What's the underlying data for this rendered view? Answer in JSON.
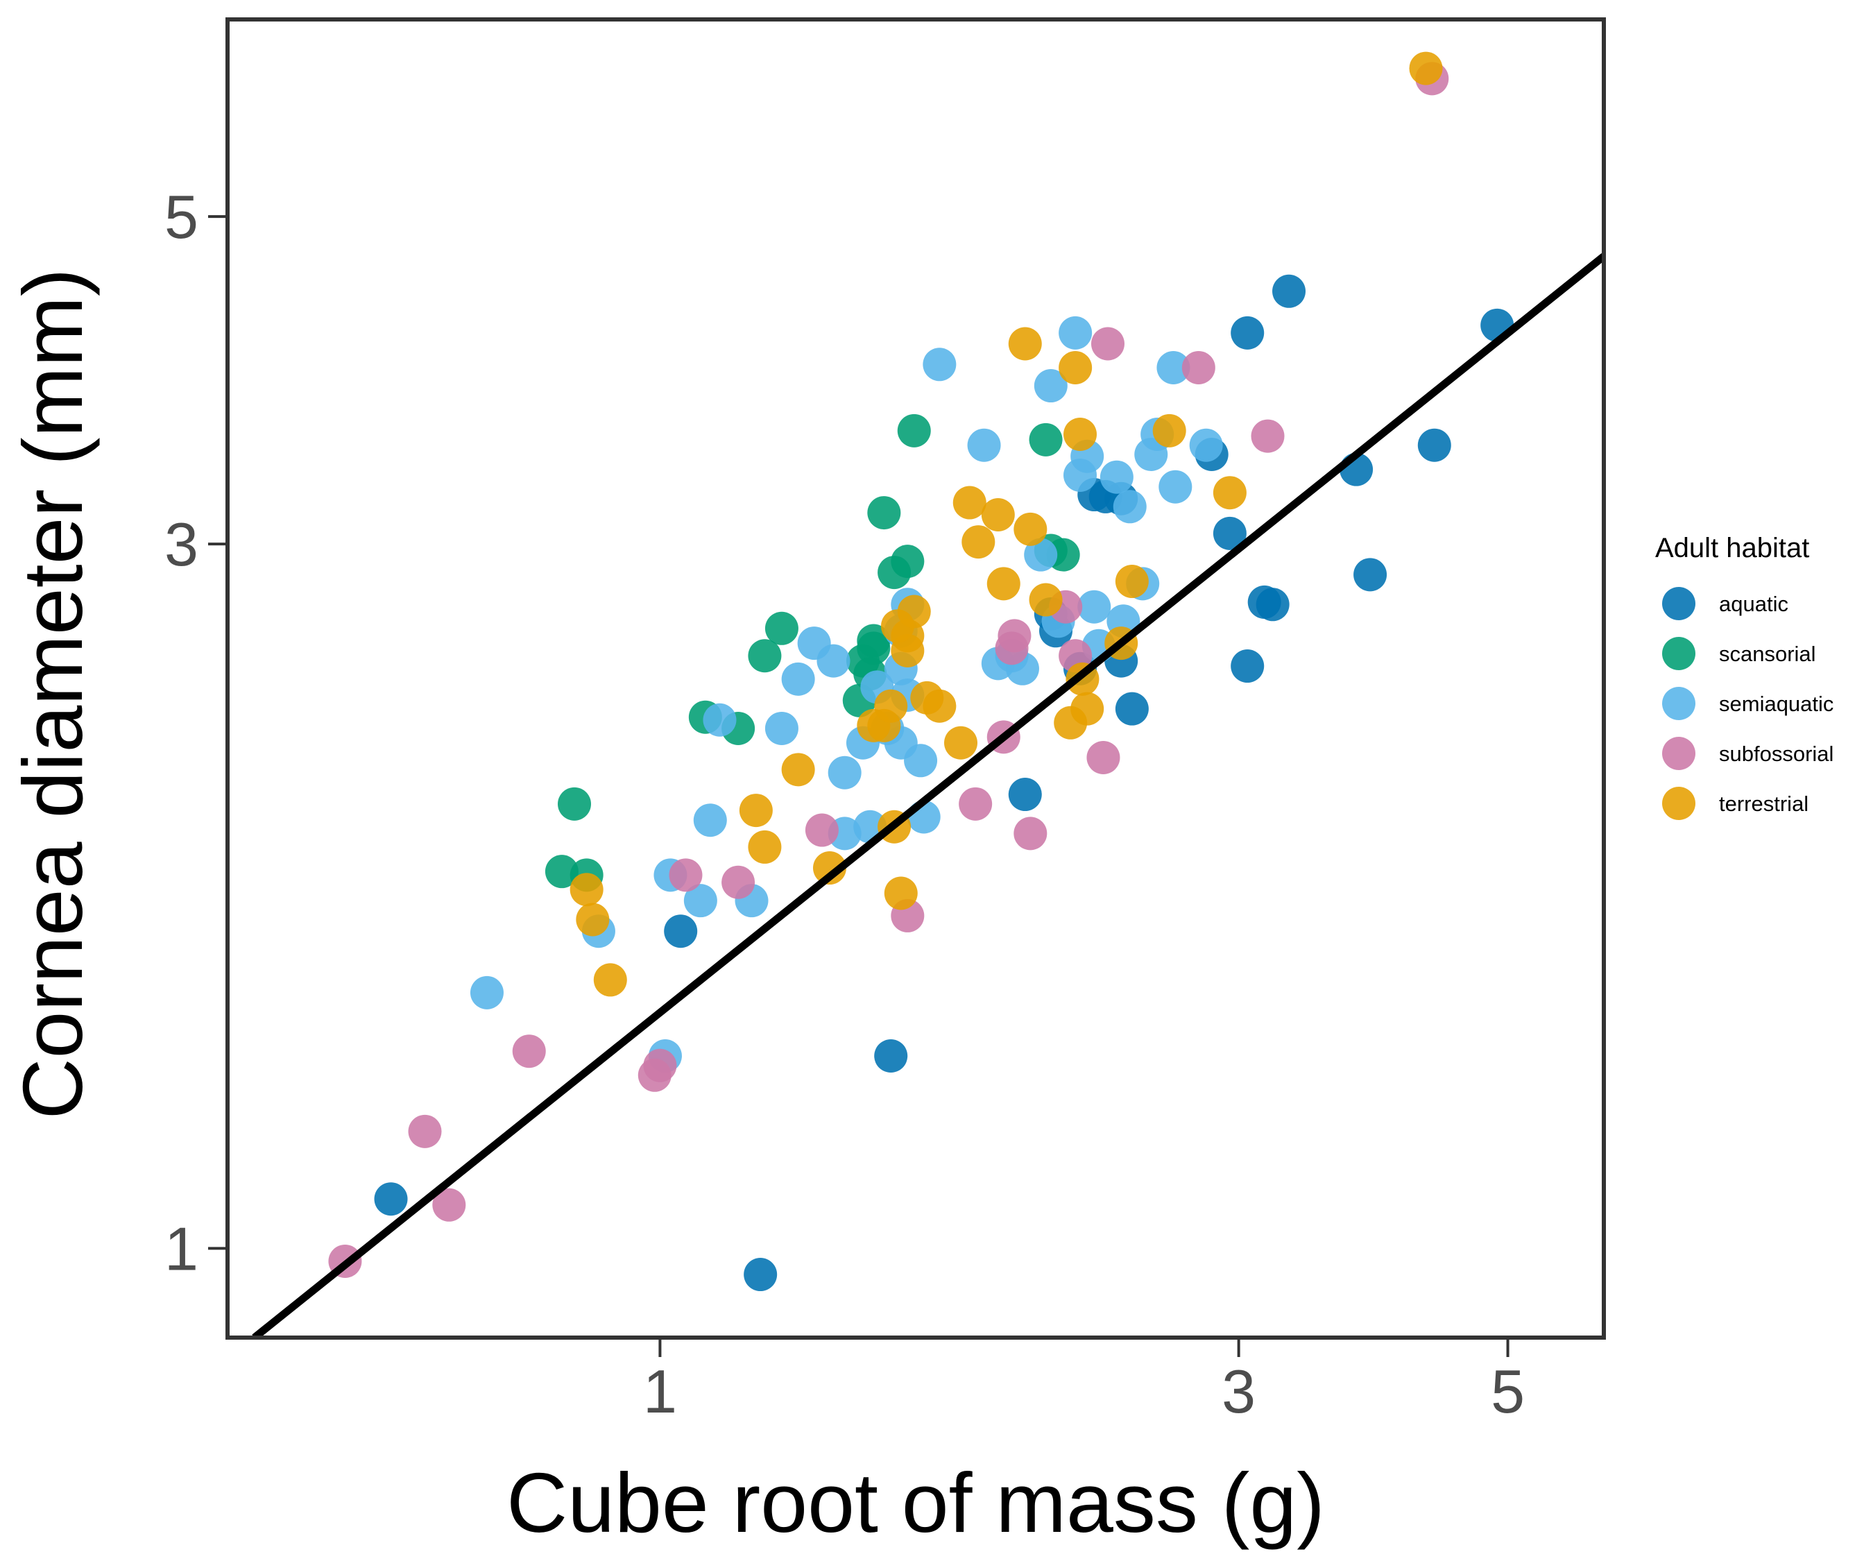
{
  "chart_data": {
    "type": "scatter",
    "xlabel": "Cube root of mass (g)",
    "ylabel": "Cornea diameter (mm)",
    "x_scale": "log",
    "y_scale": "log",
    "xlim": [
      0.44,
      6.0
    ],
    "ylim": [
      0.87,
      6.8
    ],
    "x_ticks": [
      1,
      3,
      5
    ],
    "y_ticks": [
      1,
      3,
      5
    ],
    "grid": false,
    "legend": {
      "title": "Adult habitat",
      "position": "right"
    },
    "trend_line": {
      "points": [
        [
          0.463,
          0.87
        ],
        [
          6.0,
          4.7
        ]
      ],
      "color": "#000000"
    },
    "series": [
      {
        "name": "aquatic",
        "color": "#0072B2",
        "points": [
          [
            0.6,
            1.08
          ],
          [
            1.04,
            1.64
          ],
          [
            1.21,
            0.96
          ],
          [
            1.55,
            1.35
          ],
          [
            2.0,
            2.03
          ],
          [
            2.1,
            2.69
          ],
          [
            2.12,
            2.62
          ],
          [
            2.22,
            2.47
          ],
          [
            2.28,
            3.24
          ],
          [
            2.33,
            3.23
          ],
          [
            2.4,
            3.22
          ],
          [
            2.4,
            2.5
          ],
          [
            2.45,
            2.32
          ],
          [
            2.85,
            3.45
          ],
          [
            2.95,
            3.05
          ],
          [
            3.05,
            4.17
          ],
          [
            3.05,
            2.48
          ],
          [
            3.15,
            2.74
          ],
          [
            3.2,
            2.73
          ],
          [
            3.3,
            4.45
          ],
          [
            3.75,
            3.37
          ],
          [
            3.85,
            2.86
          ],
          [
            4.35,
            3.5
          ],
          [
            4.9,
            4.22
          ]
        ]
      },
      {
        "name": "scansorial",
        "color": "#009E73",
        "points": [
          [
            0.85,
            2.0
          ],
          [
            0.83,
            1.8
          ],
          [
            0.87,
            1.79
          ],
          [
            1.09,
            2.29
          ],
          [
            1.16,
            2.25
          ],
          [
            1.22,
            2.52
          ],
          [
            1.26,
            2.63
          ],
          [
            1.46,
            2.35
          ],
          [
            1.47,
            2.5
          ],
          [
            1.53,
            3.15
          ],
          [
            1.56,
            2.87
          ],
          [
            1.6,
            2.92
          ],
          [
            1.62,
            3.58
          ],
          [
            2.08,
            3.53
          ],
          [
            2.1,
            2.97
          ],
          [
            2.15,
            2.95
          ],
          [
            1.5,
            2.55
          ],
          [
            1.49,
            2.45
          ],
          [
            1.5,
            2.58
          ]
        ]
      },
      {
        "name": "semiaquatic",
        "color": "#56B4E9",
        "points": [
          [
            0.72,
            1.49
          ],
          [
            0.89,
            1.64
          ],
          [
            1.02,
            1.79
          ],
          [
            1.01,
            1.35
          ],
          [
            1.1,
            1.95
          ],
          [
            1.08,
            1.72
          ],
          [
            1.12,
            2.28
          ],
          [
            1.19,
            1.72
          ],
          [
            1.26,
            2.25
          ],
          [
            1.3,
            2.43
          ],
          [
            1.34,
            2.57
          ],
          [
            1.39,
            2.5
          ],
          [
            1.42,
            1.91
          ],
          [
            1.42,
            2.1
          ],
          [
            1.47,
            2.2
          ],
          [
            1.49,
            1.93
          ],
          [
            1.54,
            2.25
          ],
          [
            1.58,
            2.62
          ],
          [
            1.6,
            2.37
          ],
          [
            1.58,
            2.2
          ],
          [
            1.6,
            2.73
          ],
          [
            1.64,
            2.14
          ],
          [
            1.65,
            1.96
          ],
          [
            1.85,
            3.5
          ],
          [
            1.9,
            2.49
          ],
          [
            1.95,
            2.52
          ],
          [
            1.99,
            2.47
          ],
          [
            2.06,
            2.95
          ],
          [
            2.1,
            3.84
          ],
          [
            2.13,
            2.66
          ],
          [
            2.22,
            3.34
          ],
          [
            2.25,
            3.44
          ],
          [
            2.28,
            2.72
          ],
          [
            2.3,
            2.56
          ],
          [
            2.38,
            3.33
          ],
          [
            2.41,
            2.66
          ],
          [
            2.44,
            3.18
          ],
          [
            2.54,
            3.45
          ],
          [
            2.57,
            3.56
          ],
          [
            2.65,
            3.95
          ],
          [
            2.66,
            3.28
          ],
          [
            2.82,
            3.5
          ],
          [
            1.7,
            3.97
          ],
          [
            2.2,
            4.17
          ],
          [
            2.5,
            2.82
          ],
          [
            1.58,
            2.47
          ],
          [
            1.51,
            2.4
          ]
        ]
      },
      {
        "name": "subfossorial",
        "color": "#CC79A7",
        "points": [
          [
            0.55,
            0.98
          ],
          [
            0.64,
            1.2
          ],
          [
            0.67,
            1.07
          ],
          [
            0.78,
            1.36
          ],
          [
            0.99,
            1.31
          ],
          [
            1.0,
            1.33
          ],
          [
            1.05,
            1.79
          ],
          [
            1.16,
            1.77
          ],
          [
            1.36,
            1.92
          ],
          [
            1.6,
            1.68
          ],
          [
            1.82,
            2.0
          ],
          [
            1.92,
            2.22
          ],
          [
            1.96,
            2.6
          ],
          [
            2.02,
            1.91
          ],
          [
            2.16,
            2.72
          ],
          [
            2.2,
            2.52
          ],
          [
            2.32,
            2.15
          ],
          [
            2.34,
            4.1
          ],
          [
            2.78,
            3.95
          ],
          [
            3.17,
            3.55
          ],
          [
            4.33,
            6.2
          ],
          [
            1.95,
            2.55
          ]
        ]
      },
      {
        "name": "terrestrial",
        "color": "#E69F00",
        "points": [
          [
            0.87,
            1.75
          ],
          [
            0.88,
            1.67
          ],
          [
            0.91,
            1.52
          ],
          [
            1.2,
            1.98
          ],
          [
            1.22,
            1.87
          ],
          [
            1.3,
            2.11
          ],
          [
            1.38,
            1.81
          ],
          [
            1.5,
            2.26
          ],
          [
            1.53,
            2.26
          ],
          [
            1.55,
            2.33
          ],
          [
            1.56,
            1.93
          ],
          [
            1.58,
            1.74
          ],
          [
            1.6,
            2.54
          ],
          [
            1.6,
            2.6
          ],
          [
            1.66,
            2.36
          ],
          [
            1.7,
            2.33
          ],
          [
            1.77,
            2.2
          ],
          [
            1.8,
            3.2
          ],
          [
            1.83,
            3.01
          ],
          [
            1.9,
            3.14
          ],
          [
            1.92,
            2.82
          ],
          [
            2.02,
            3.07
          ],
          [
            2.08,
            2.75
          ],
          [
            2.18,
            2.27
          ],
          [
            2.23,
            2.43
          ],
          [
            2.25,
            2.32
          ],
          [
            2.22,
            3.56
          ],
          [
            2.0,
            4.1
          ],
          [
            2.2,
            3.95
          ],
          [
            2.4,
            2.57
          ],
          [
            2.45,
            2.83
          ],
          [
            2.63,
            3.58
          ],
          [
            2.95,
            3.25
          ],
          [
            4.28,
            6.3
          ],
          [
            1.57,
            2.64
          ],
          [
            1.62,
            2.7
          ]
        ]
      }
    ]
  }
}
